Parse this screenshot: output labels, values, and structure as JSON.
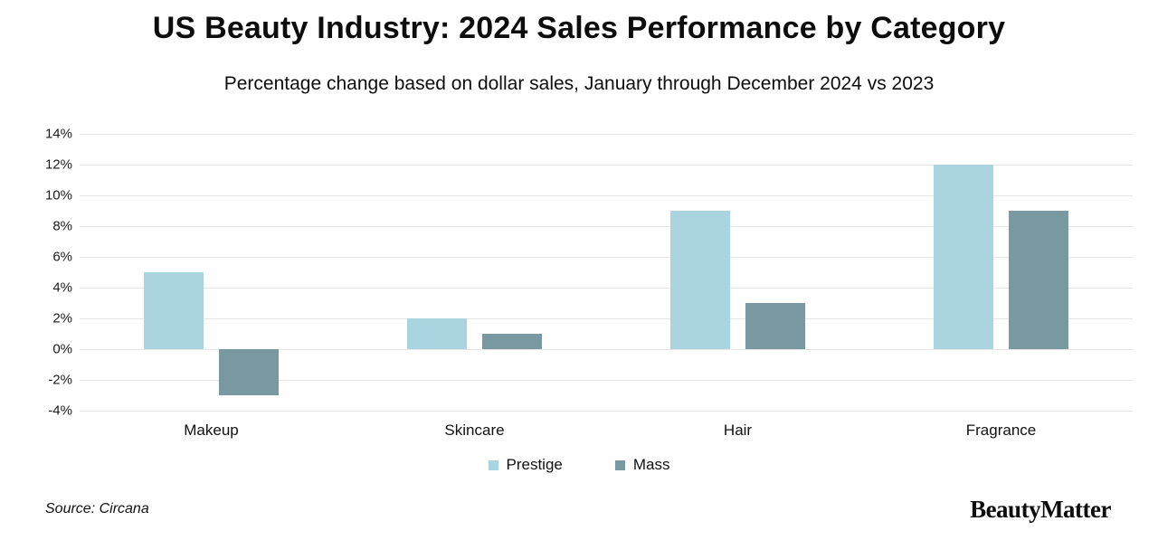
{
  "header": {
    "title": "US Beauty Industry: 2024 Sales Performance by Category",
    "subtitle": "Percentage change based on dollar sales, January through December 2024 vs 2023"
  },
  "chart_data": {
    "type": "bar",
    "categories": [
      "Makeup",
      "Skincare",
      "Hair",
      "Fragrance"
    ],
    "series": [
      {
        "name": "Prestige",
        "color": "#aad5e0",
        "values": [
          5,
          2,
          9,
          12
        ]
      },
      {
        "name": "Mass",
        "color": "#78999f",
        "values": [
          -3,
          1,
          3,
          9
        ]
      }
    ],
    "title": "US Beauty Industry: 2024 Sales Performance by Category",
    "subtitle": "Percentage change based on dollar sales, January through December 2024 vs 2023",
    "xlabel": "",
    "ylabel": "",
    "ylim": [
      -4,
      14
    ],
    "ytick_step": 2,
    "ytick_suffix": "%",
    "grid": "horizontal",
    "gridline_color": "#e7e7e7",
    "legend_position": "bottom-center"
  },
  "footer": {
    "source": "Source: Circana",
    "logo": "BeautyMatter"
  }
}
